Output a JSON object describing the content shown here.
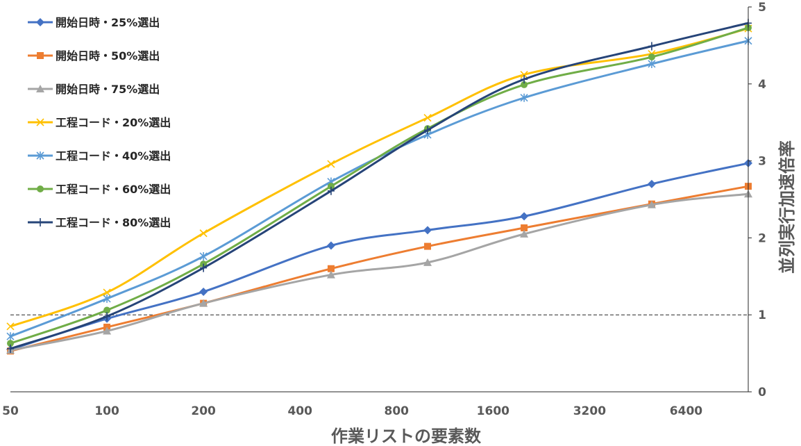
{
  "chart_data": {
    "type": "line",
    "xlabel": "作業リストの要素数",
    "ylabel": "並列実行加速倍率",
    "x_scale": "log2",
    "x_tick_labels": [
      "50",
      "100",
      "200",
      "400",
      "800",
      "1600",
      "3200",
      "6400"
    ],
    "y_tick_labels": [
      "0",
      "1",
      "2",
      "3",
      "4",
      "5"
    ],
    "ylim": [
      0,
      5
    ],
    "x": [
      50,
      100,
      200,
      500,
      1000,
      2000,
      5000,
      10000
    ],
    "reference_line": {
      "y": 1,
      "style": "dashed"
    },
    "legend_position": "top-left",
    "series": [
      {
        "name": "開始日時・25%選出",
        "color": "#4472C4",
        "marker": "diamond",
        "values": [
          0.55,
          0.95,
          1.3,
          1.9,
          2.1,
          2.28,
          2.7,
          2.97
        ]
      },
      {
        "name": "開始日時・50%選出",
        "color": "#ED7D31",
        "marker": "square",
        "values": [
          0.53,
          0.84,
          1.15,
          1.6,
          1.89,
          2.13,
          2.44,
          2.67
        ]
      },
      {
        "name": "開始日時・75%選出",
        "color": "#A5A5A5",
        "marker": "triangle",
        "values": [
          0.54,
          0.79,
          1.15,
          1.52,
          1.68,
          2.05,
          2.43,
          2.57
        ]
      },
      {
        "name": "工程コード・20%選出",
        "color": "#FFC000",
        "marker": "x",
        "values": [
          0.85,
          1.29,
          2.06,
          2.96,
          3.56,
          4.12,
          4.39,
          4.72
        ]
      },
      {
        "name": "工程コード・40%選出",
        "color": "#5B9BD5",
        "marker": "asterisk",
        "values": [
          0.72,
          1.21,
          1.76,
          2.73,
          3.34,
          3.82,
          4.26,
          4.56
        ]
      },
      {
        "name": "工程コード・60%選出",
        "color": "#70AD47",
        "marker": "circle",
        "values": [
          0.63,
          1.06,
          1.66,
          2.67,
          3.42,
          3.99,
          4.35,
          4.73
        ]
      },
      {
        "name": "工程コード・80%選出",
        "color": "#264478",
        "marker": "plus",
        "values": [
          0.56,
          0.98,
          1.61,
          2.61,
          3.4,
          4.06,
          4.49,
          4.79
        ]
      }
    ]
  }
}
